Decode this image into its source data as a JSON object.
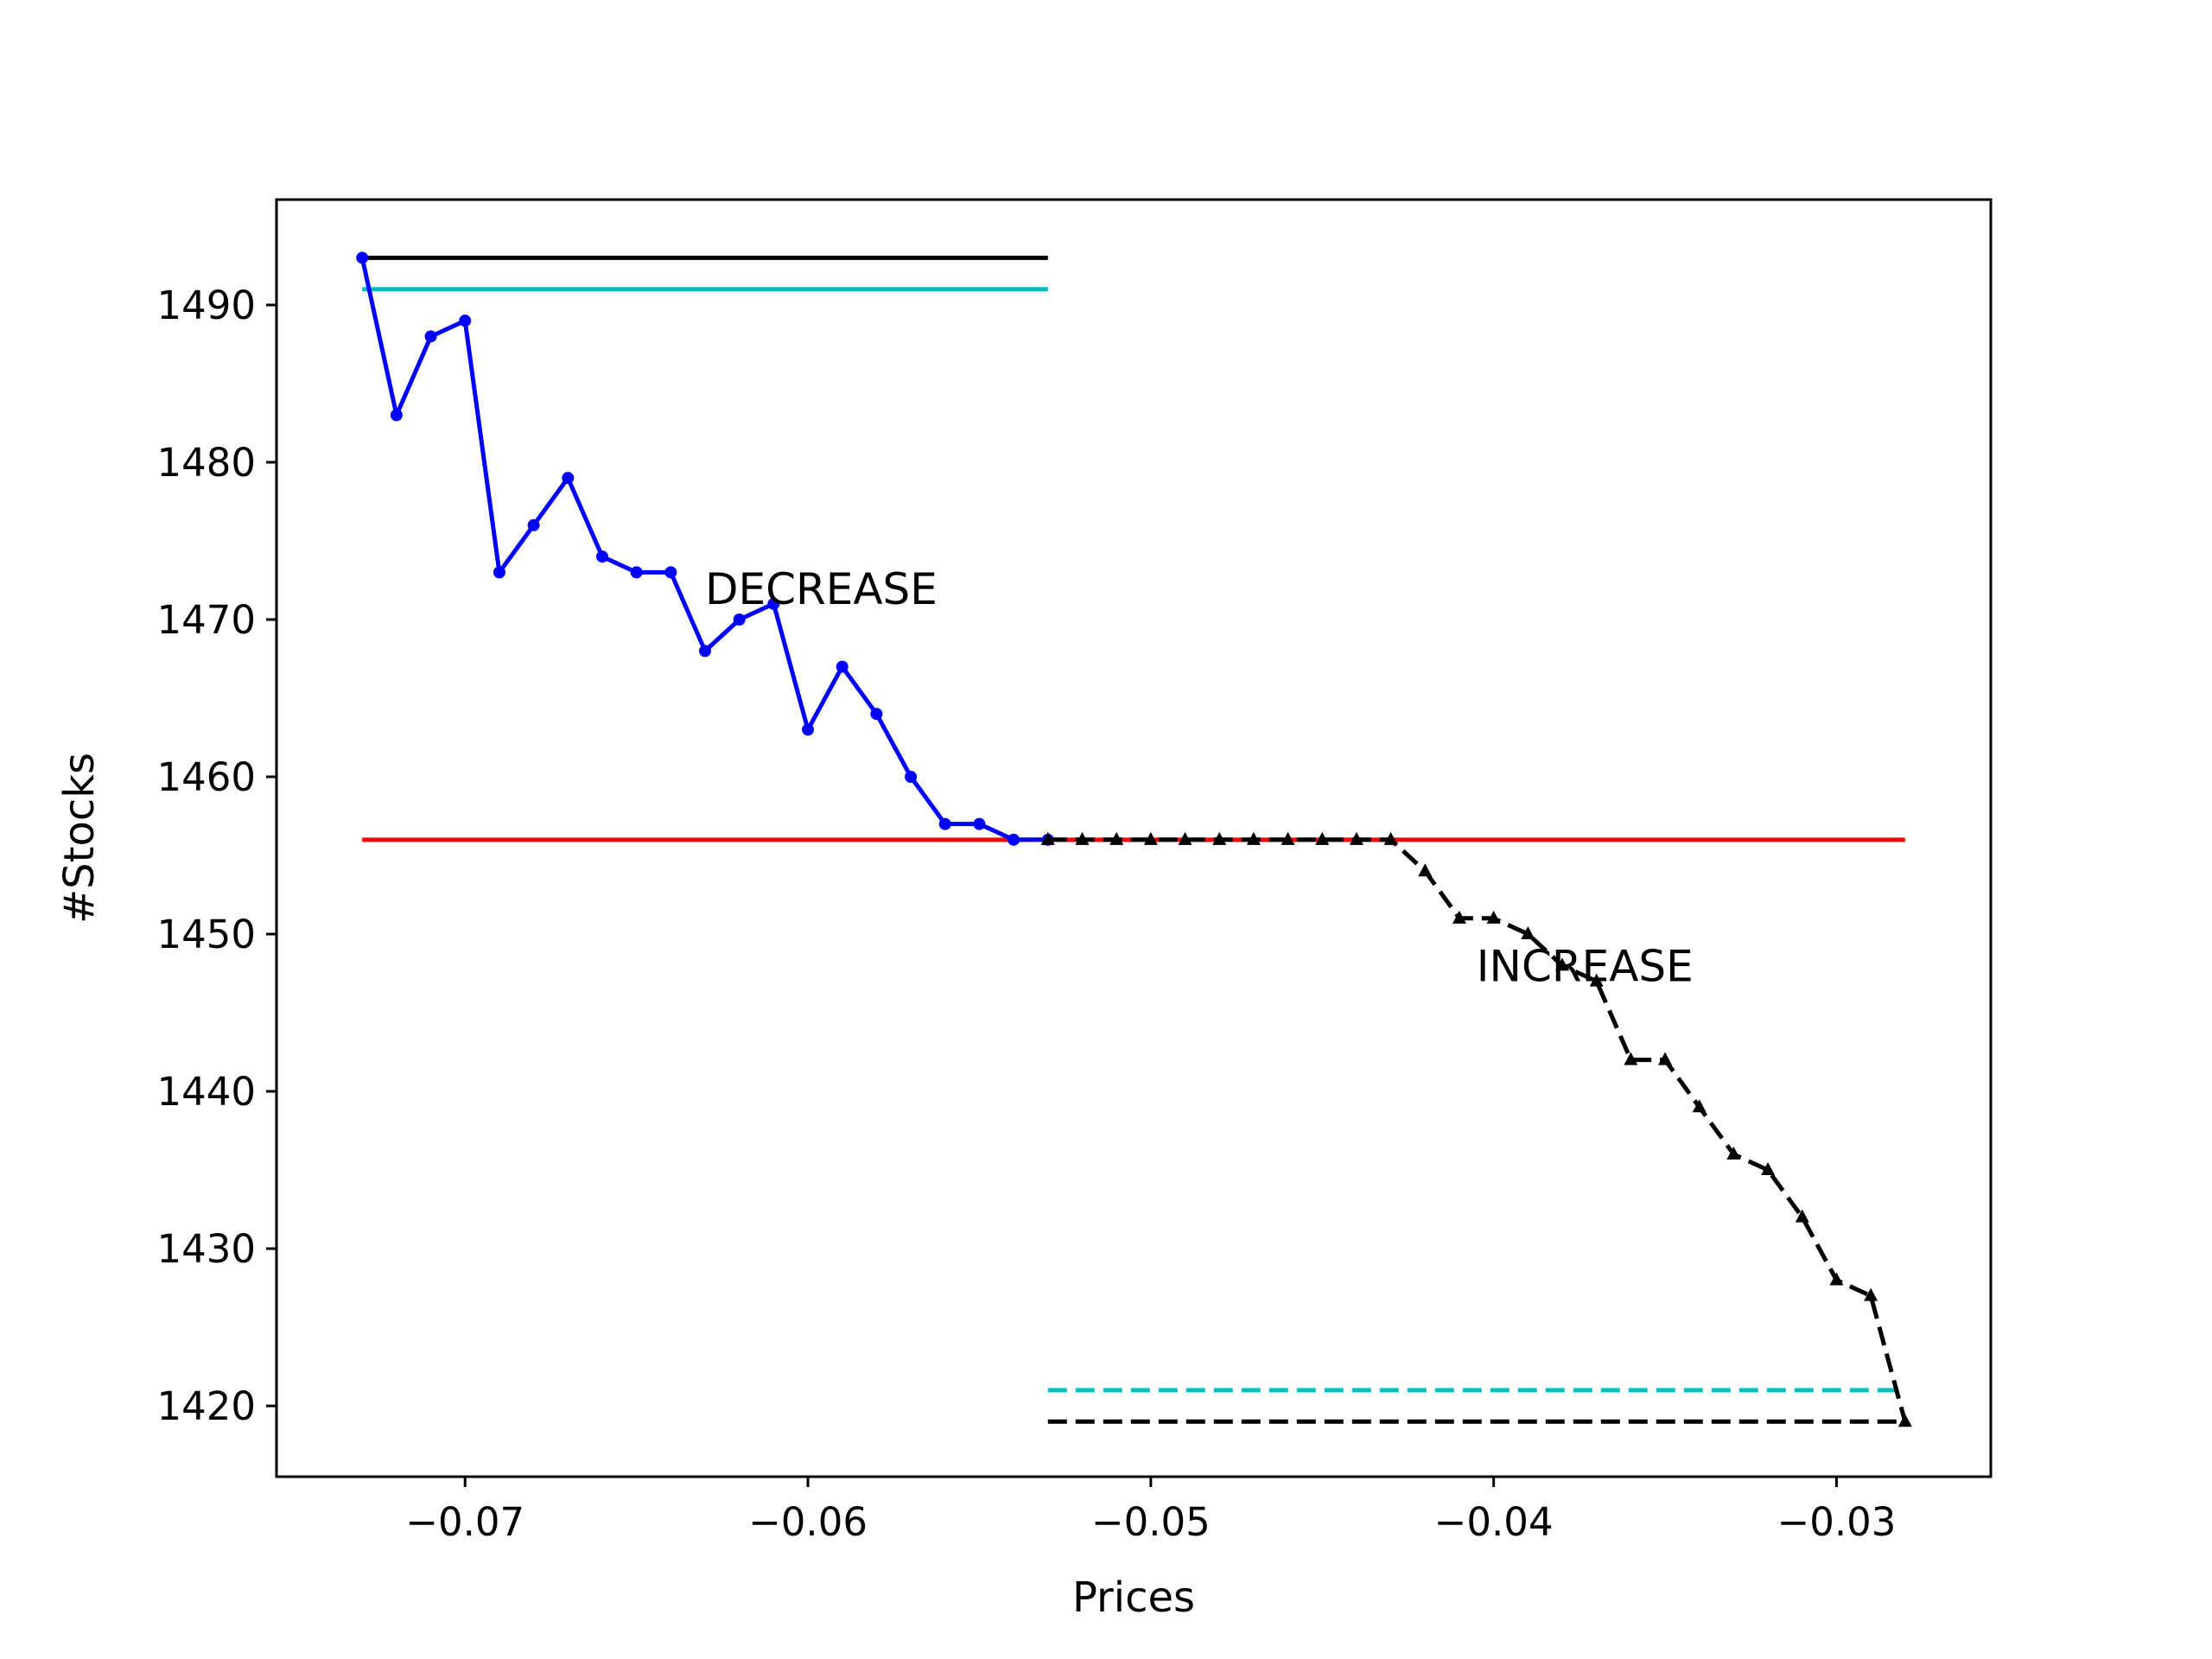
{
  "chart_data": {
    "type": "line",
    "title": "",
    "xlabel": "Prices",
    "ylabel": "#Stocks",
    "xlim": [
      -0.0755,
      -0.0255
    ],
    "ylim": [
      1415.5,
      1496.7
    ],
    "x_ticks": [
      -0.07,
      -0.06,
      -0.05,
      -0.04,
      -0.03
    ],
    "x_tick_labels": [
      "−0.07",
      "−0.06",
      "−0.05",
      "−0.04",
      "−0.03"
    ],
    "y_ticks": [
      1420,
      1430,
      1440,
      1450,
      1460,
      1470,
      1480,
      1490
    ],
    "y_tick_labels": [
      "1420",
      "1430",
      "1440",
      "1450",
      "1460",
      "1470",
      "1480",
      "1490"
    ],
    "grid": false,
    "series": [
      {
        "color": "#0000ff",
        "line_style": "solid",
        "marker": "dot",
        "x": [
          -0.073,
          -0.072,
          -0.071,
          -0.07,
          -0.069,
          -0.068,
          -0.067,
          -0.066,
          -0.065,
          -0.064,
          -0.063,
          -0.062,
          -0.061,
          -0.06,
          -0.059,
          -0.058,
          -0.057,
          -0.056,
          -0.055,
          -0.054,
          -0.053
        ],
        "y": [
          1493,
          1483,
          1488,
          1489,
          1473,
          1476,
          1479,
          1474,
          1473,
          1473,
          1468,
          1470,
          1471,
          1463,
          1467,
          1464,
          1460,
          1457,
          1457,
          1456,
          1456
        ]
      },
      {
        "color": "#000000",
        "line_style": "dashed",
        "marker": "triangle",
        "x": [
          -0.053,
          -0.052,
          -0.051,
          -0.05,
          -0.049,
          -0.048,
          -0.047,
          -0.046,
          -0.045,
          -0.044,
          -0.043,
          -0.042,
          -0.041,
          -0.04,
          -0.039,
          -0.038,
          -0.037,
          -0.036,
          -0.035,
          -0.034,
          -0.033,
          -0.032,
          -0.031,
          -0.03,
          -0.029,
          -0.028
        ],
        "y": [
          1456,
          1456,
          1456,
          1456,
          1456,
          1456,
          1456,
          1456,
          1456,
          1456,
          1456,
          1454,
          1451,
          1451,
          1450,
          1448,
          1447,
          1442,
          1442,
          1439,
          1436,
          1435,
          1432,
          1428,
          1427,
          1419
        ]
      }
    ],
    "reference_lines": [
      {
        "color": "#000000",
        "line_style": "solid",
        "y": 1493,
        "x_start": -0.073,
        "x_end": -0.053
      },
      {
        "color": "#00bfbf",
        "line_style": "solid",
        "y": 1491,
        "x_start": -0.073,
        "x_end": -0.053
      },
      {
        "color": "#ff0000",
        "line_style": "solid",
        "y": 1456,
        "x_start": -0.073,
        "x_end": -0.028
      },
      {
        "color": "#00bfbf",
        "line_style": "dashed",
        "y": 1421,
        "x_start": -0.053,
        "x_end": -0.028
      },
      {
        "color": "#000000",
        "line_style": "dashed",
        "y": 1419,
        "x_start": -0.053,
        "x_end": -0.028
      }
    ],
    "annotations": [
      {
        "text": "DECREASE",
        "x": -0.063,
        "y": 1471
      },
      {
        "text": "INCREASE",
        "x": -0.0405,
        "y": 1447
      }
    ]
  }
}
